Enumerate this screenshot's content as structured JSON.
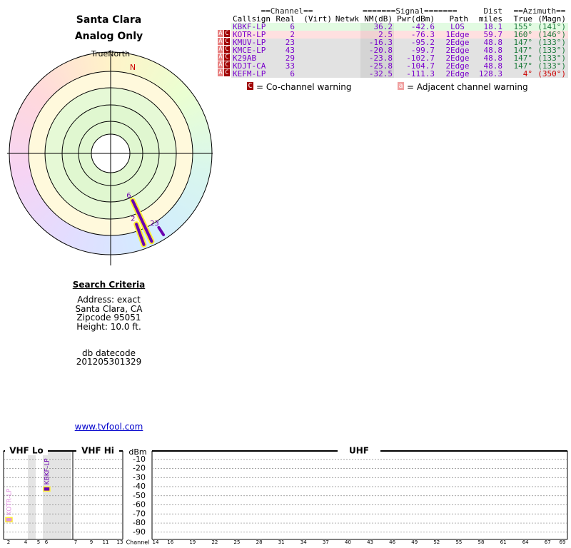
{
  "header": {
    "title": "Santa Clara",
    "subtitle": "Analog Only",
    "north_label": "TrueNorth",
    "north_marker": "N"
  },
  "table": {
    "groups": [
      "==Channel==",
      "=======Signal=======",
      "Dist",
      "==Azimuth=="
    ],
    "columns": [
      "Callsign",
      "Real",
      "(Virt)",
      "Netwk",
      "NM(dB)",
      "Pwr(dBm)",
      "Path",
      "miles",
      "True",
      "(Magn)"
    ],
    "rows": [
      {
        "callsign": "KBKF-LP",
        "real": 6,
        "nm": 36.2,
        "pwr": -42.6,
        "path": "LOS",
        "dist": 18.1,
        "true": "155°",
        "magn": "(141°)"
      },
      {
        "flags": [
          "A",
          "C"
        ],
        "callsign": "KOTR-LP",
        "real": 2,
        "nm": 2.5,
        "pwr": -76.3,
        "path": "1Edge",
        "dist": 59.7,
        "true": "160°",
        "magn": "(146°)"
      },
      {
        "flags": [
          "A",
          "C"
        ],
        "callsign": "KMUV-LP",
        "real": 23,
        "nm": -16.3,
        "pwr": -95.2,
        "path": "2Edge",
        "dist": 48.8,
        "true": "147°",
        "magn": "(133°)"
      },
      {
        "flags": [
          "A",
          "C"
        ],
        "callsign": "KMCE-LP",
        "real": 43,
        "nm": -20.8,
        "pwr": -99.7,
        "path": "2Edge",
        "dist": 48.8,
        "true": "147°",
        "magn": "(133°)"
      },
      {
        "flags": [
          "A",
          "C"
        ],
        "callsign": "K29AB",
        "real": 29,
        "nm": -23.8,
        "pwr": -102.7,
        "path": "2Edge",
        "dist": 48.8,
        "true": "147°",
        "magn": "(133°)"
      },
      {
        "flags": [
          "A",
          "C"
        ],
        "callsign": "KDJT-CA",
        "real": 33,
        "nm": -25.8,
        "pwr": -104.7,
        "path": "2Edge",
        "dist": 48.8,
        "true": "147°",
        "magn": "(133°)"
      },
      {
        "flags": [
          "A",
          "C"
        ],
        "callsign": "KEFM-LP",
        "real": 6,
        "nm": -32.5,
        "pwr": -111.3,
        "path": "2Edge",
        "dist": 128.3,
        "true": "4°",
        "magn": "(350°)"
      }
    ],
    "legend": [
      {
        "icon": "C",
        "text": "= Co-channel warning"
      },
      {
        "icon": "a",
        "text": "= Adjacent channel warning"
      }
    ]
  },
  "criteria": {
    "title": "Search Criteria",
    "lines": [
      "Address: exact",
      "Santa Clara, CA",
      "Zipcode 95051",
      "Height: 10.0 ft."
    ],
    "datecode_label": "db datecode",
    "datecode": "201205301329",
    "link": "www.tvfool.com"
  },
  "spectrum": {
    "sections": [
      "VHF Lo",
      "VHF Hi",
      "UHF"
    ],
    "ylabel": "dBm",
    "xlabel": "Channel",
    "ylim": [
      -98,
      0
    ],
    "yticks": [
      -10,
      -20,
      -30,
      -40,
      -50,
      -60,
      -70,
      -80,
      -90
    ],
    "vhf_channels": [
      2,
      4,
      5,
      6,
      7,
      9,
      11,
      13
    ],
    "uhf_channels": [
      14,
      16,
      19,
      22,
      25,
      28,
      31,
      34,
      37,
      40,
      43,
      46,
      49,
      52,
      55,
      58,
      61,
      64,
      67,
      69
    ]
  }
}
